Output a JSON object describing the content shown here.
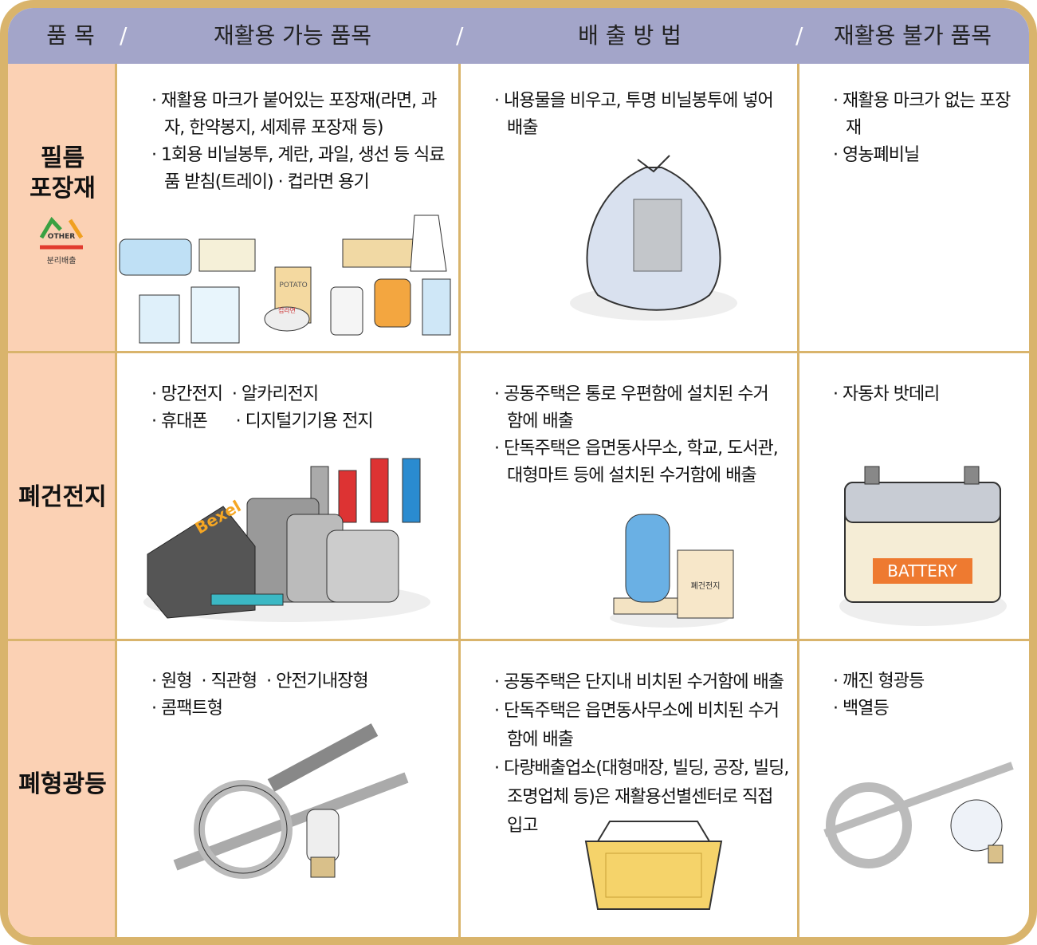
{
  "header": {
    "columns": [
      "품 목",
      "재활용 가능 품목",
      "배 출 방 법",
      "재활용 불가 품목"
    ],
    "separator": "/"
  },
  "rows": [
    {
      "category": [
        "필름",
        "포장재"
      ],
      "badge": {
        "label": "OTHER",
        "caption": "분리배출"
      },
      "recyclable": [
        "· 재활용 마크가 붙어있는 포장재(라면, 과자, 한약봉지, 세제류 포장재 등)",
        "· 1회용 비닐봉투, 계란, 과일, 생선 등 식료품 받침(트레이)  · 컵라면 용기"
      ],
      "method": [
        "· 내용물을 비우고, 투명 비닐봉투에 넣어 배출"
      ],
      "non_recyclable": [
        "· 재활용 마크가 없는 포장재",
        "· 영농폐비닐"
      ],
      "illustration_labels": [
        "POTATO",
        "컵라면"
      ]
    },
    {
      "category": [
        "폐건전지"
      ],
      "recyclable": [
        "· 망간전지  · 알카리전지",
        "· 휴대폰      · 디지털기기용 전지"
      ],
      "method": [
        "· 공동주택은 통로 우편함에 설치된 수거함에 배출",
        "· 단독주택은 읍면동사무소, 학교, 도서관, 대형마트 등에 설치된 수거함에 배출"
      ],
      "non_recyclable": [
        "· 자동차 밧데리"
      ],
      "illustration_labels": [
        "Bexel",
        "폐건전지",
        "BATTERY"
      ]
    },
    {
      "category": [
        "폐형광등"
      ],
      "recyclable": [
        "· 원형  · 직관형  · 안전기내장형",
        "· 콤팩트형"
      ],
      "method": [
        "· 공동주택은 단지내 비치된 수거함에 배출",
        "· 단독주택은 읍면동사무소에 비치된 수거함에 배출",
        "· 다량배출업소(대형매장, 빌딩, 공장, 빌딩, 조명업체 등)은 재활용선별센터로 직접 입고"
      ],
      "non_recyclable": [
        "· 깨진 형광등",
        "· 백열등"
      ]
    }
  ]
}
